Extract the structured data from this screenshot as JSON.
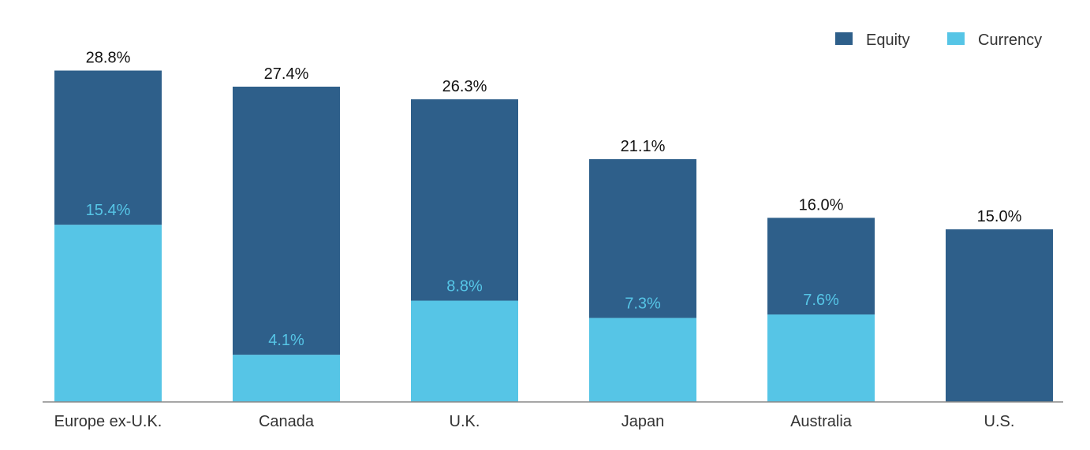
{
  "chart_data": {
    "type": "bar",
    "stacked": true,
    "title": "",
    "xlabel": "",
    "ylabel": "",
    "ylim": [
      0,
      30
    ],
    "grid": false,
    "legend_position": "top-right",
    "categories": [
      "Europe ex-U.K.",
      "Canada",
      "U.K.",
      "Japan",
      "Australia",
      "U.S."
    ],
    "series": [
      {
        "name": "Equity",
        "color": "#2e5f8a",
        "values": [
          13.4,
          23.3,
          17.5,
          13.8,
          8.4,
          15.0
        ]
      },
      {
        "name": "Currency",
        "color": "#56c5e6",
        "values": [
          15.4,
          4.1,
          8.8,
          7.3,
          7.6,
          0
        ]
      }
    ],
    "totals": [
      28.8,
      27.4,
      26.3,
      21.1,
      16.0,
      15.0
    ],
    "total_labels": [
      "28.8%",
      "27.4%",
      "26.3%",
      "21.1%",
      "16.0%",
      "15.0%"
    ],
    "currency_labels": [
      "15.4%",
      "4.1%",
      "8.8%",
      "7.3%",
      "7.6%",
      ""
    ]
  }
}
